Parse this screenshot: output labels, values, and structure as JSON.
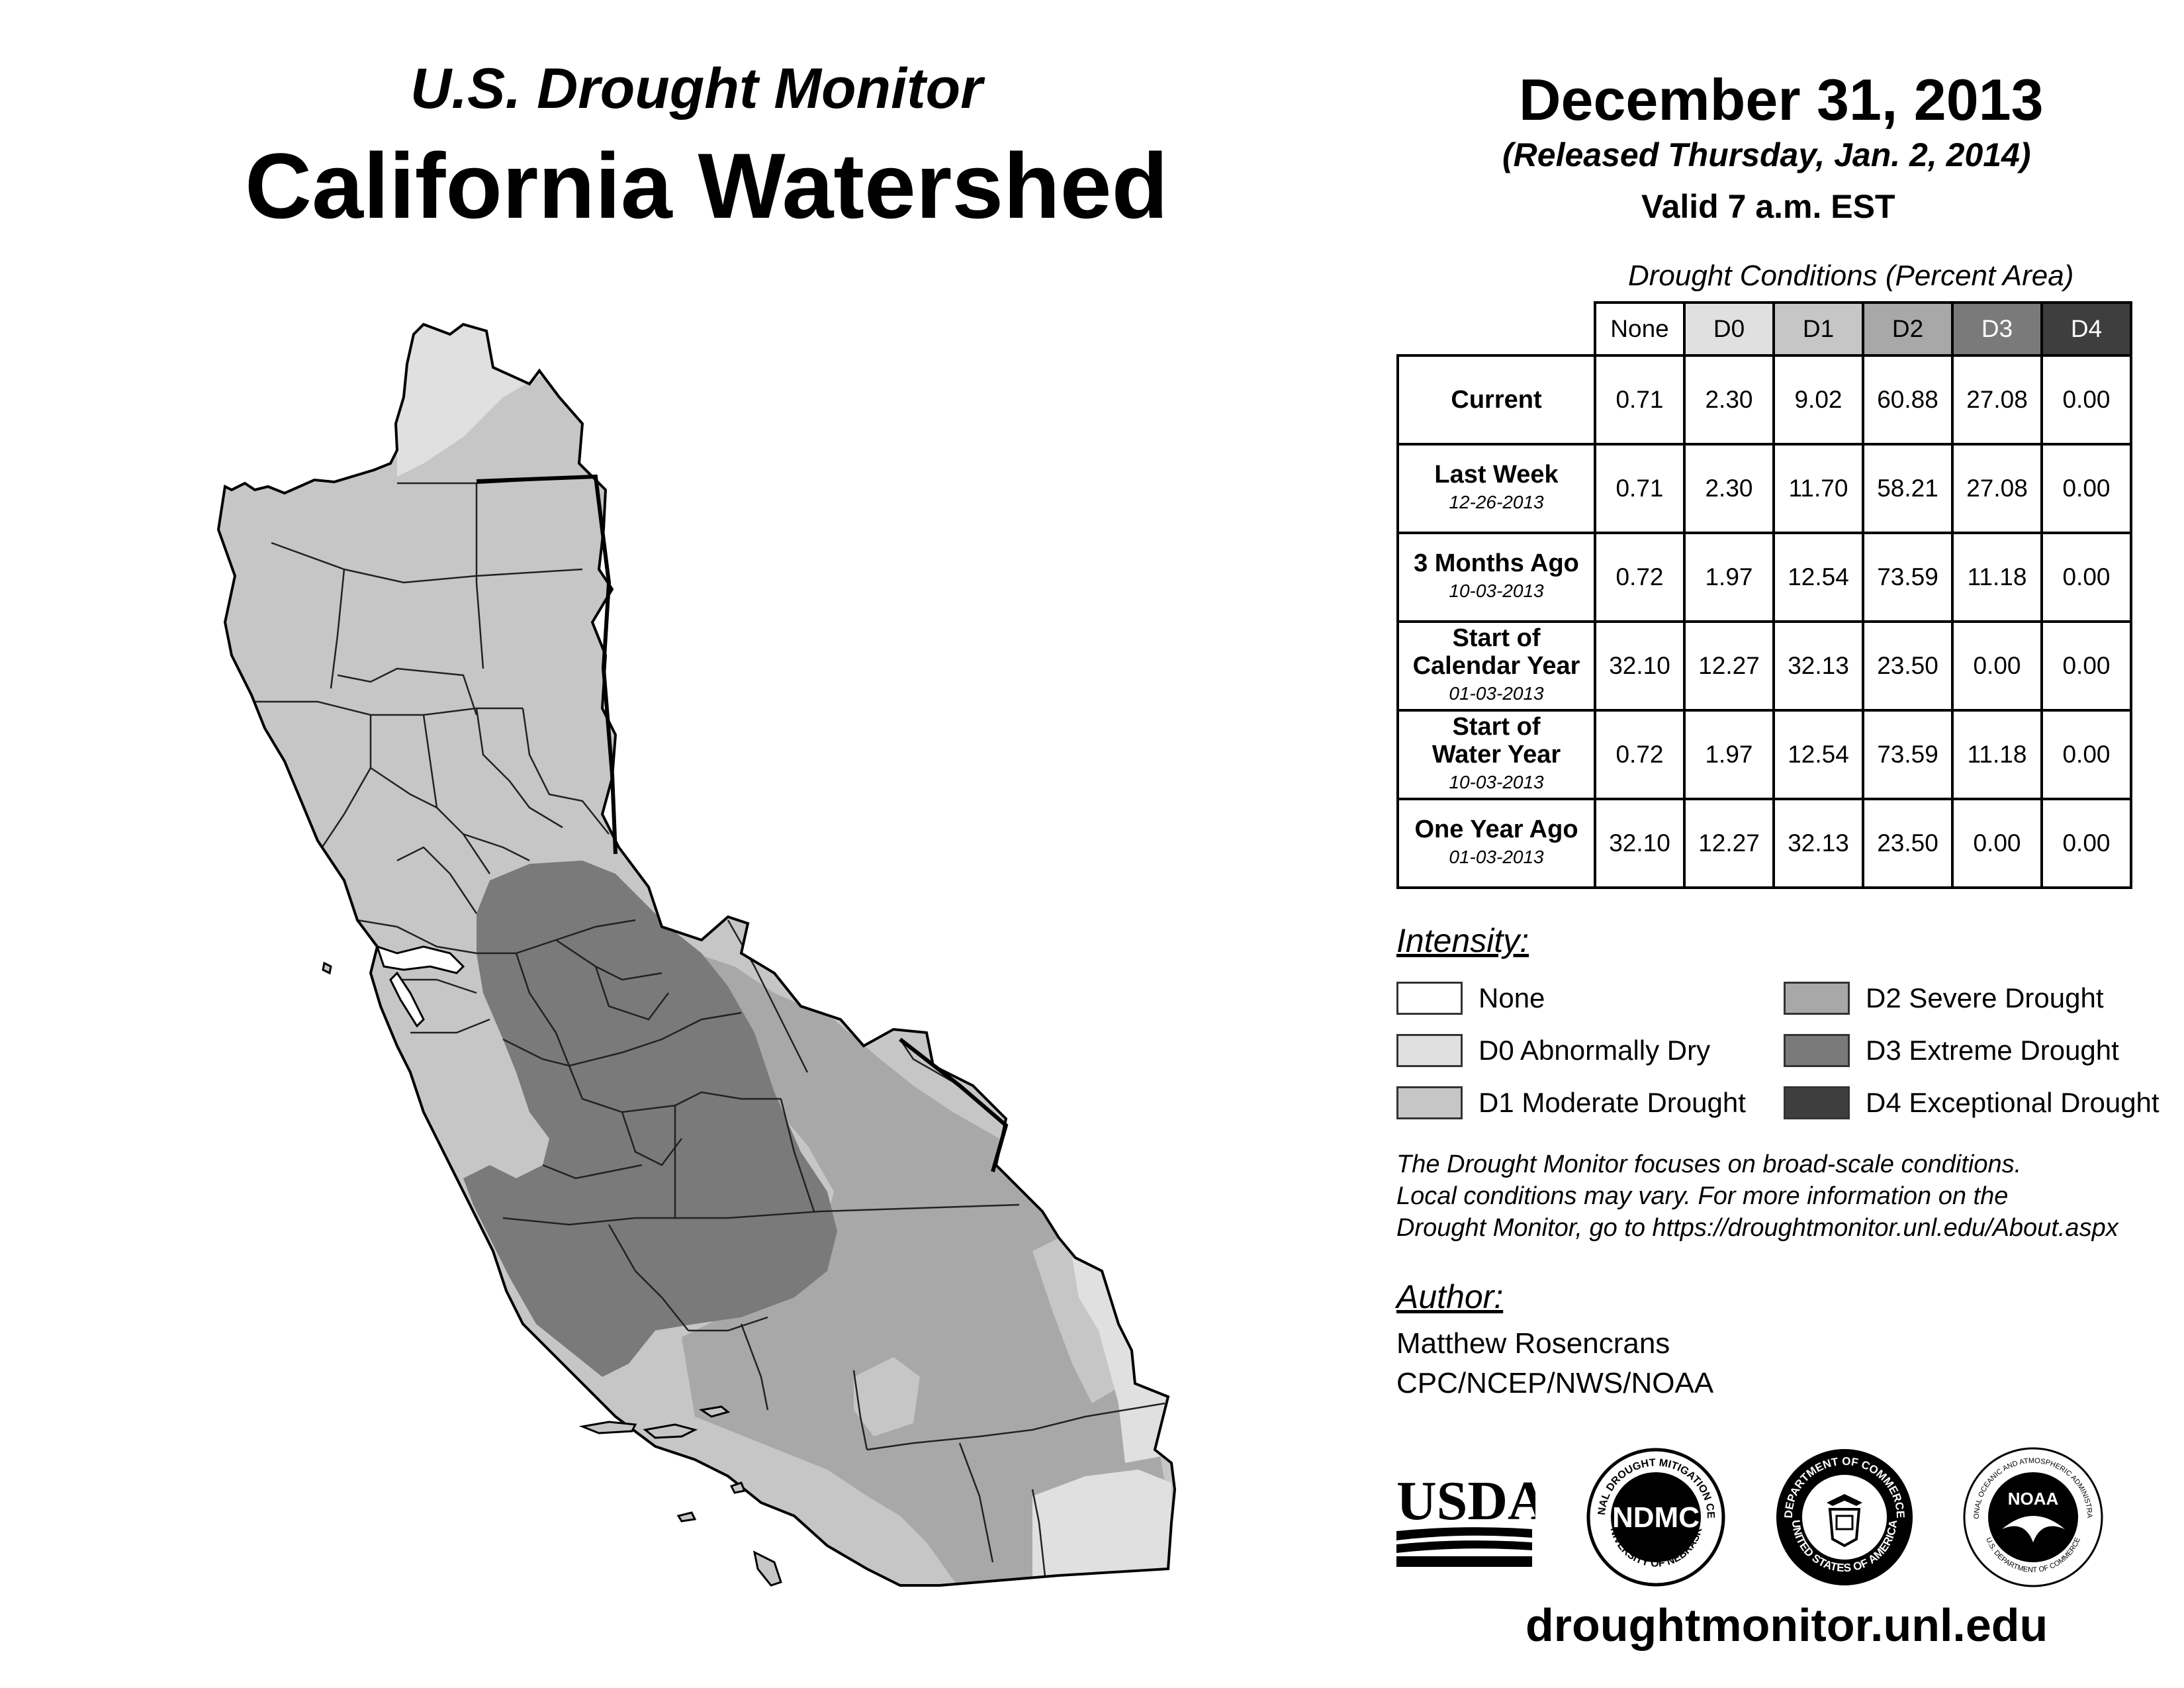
{
  "header": {
    "subtitle": "U.S. Drought Monitor",
    "title": "California Watershed",
    "date": "December 31, 2013",
    "released": "(Released Thursday, Jan. 2, 2014)",
    "valid": "Valid 7 a.m. EST"
  },
  "table": {
    "caption": "Drought Conditions (Percent Area)",
    "columns": [
      "None",
      "D0",
      "D1",
      "D2",
      "D3",
      "D4"
    ],
    "rows": [
      {
        "label": "Current",
        "label2": "",
        "date": "",
        "values": [
          "0.71",
          "2.30",
          "9.02",
          "60.88",
          "27.08",
          "0.00"
        ]
      },
      {
        "label": "Last Week",
        "label2": "",
        "date": "12-26-2013",
        "values": [
          "0.71",
          "2.30",
          "11.70",
          "58.21",
          "27.08",
          "0.00"
        ]
      },
      {
        "label": "3 Months Ago",
        "label2": "",
        "date": "10-03-2013",
        "values": [
          "0.72",
          "1.97",
          "12.54",
          "73.59",
          "11.18",
          "0.00"
        ]
      },
      {
        "label": "Start of",
        "label2": "Calendar Year",
        "date": "01-03-2013",
        "values": [
          "32.10",
          "12.27",
          "32.13",
          "23.50",
          "0.00",
          "0.00"
        ]
      },
      {
        "label": "Start of",
        "label2": "Water Year",
        "date": "10-03-2013",
        "values": [
          "0.72",
          "1.97",
          "12.54",
          "73.59",
          "11.18",
          "0.00"
        ]
      },
      {
        "label": "One Year Ago",
        "label2": "",
        "date": "01-03-2013",
        "values": [
          "32.10",
          "12.27",
          "32.13",
          "23.50",
          "0.00",
          "0.00"
        ]
      }
    ]
  },
  "legend": {
    "heading": "Intensity:",
    "items": [
      {
        "label": "None",
        "color": "#ffffff"
      },
      {
        "label": "D0 Abnormally Dry",
        "color": "#e0e0e0"
      },
      {
        "label": "D1 Moderate Drought",
        "color": "#c6c6c6"
      },
      {
        "label": "D2 Severe Drought",
        "color": "#a8a8a8"
      },
      {
        "label": "D3 Extreme Drought",
        "color": "#7a7a7a"
      },
      {
        "label": "D4 Exceptional Drought",
        "color": "#3e3e3e"
      }
    ]
  },
  "note": {
    "line1": "The Drought Monitor focuses on broad-scale conditions.",
    "line2": "Local conditions may vary. For more information on the",
    "line3": "Drought Monitor, go to https://droughtmonitor.unl.edu/About.aspx"
  },
  "author": {
    "heading": "Author:",
    "name": "Matthew Rosencrans",
    "org": "CPC/NCEP/NWS/NOAA"
  },
  "logos": {
    "usda": "USDA",
    "ndmc": "NDMC",
    "ndmc_ring_top": "NATIONAL DROUGHT MITIGATION CENTER",
    "ndmc_ring_bottom": "UNIVERSITY OF NEBRASKA",
    "doc_ring_top": "DEPARTMENT OF COMMERCE",
    "doc_ring_bottom": "UNITED STATES OF AMERICA",
    "noaa": "NOAA",
    "noaa_ring_top": "NATIONAL OCEANIC AND ATMOSPHERIC ADMINISTRATION",
    "noaa_ring_bottom": "U.S. DEPARTMENT OF COMMERCE"
  },
  "website": "droughtmonitor.unl.edu"
}
